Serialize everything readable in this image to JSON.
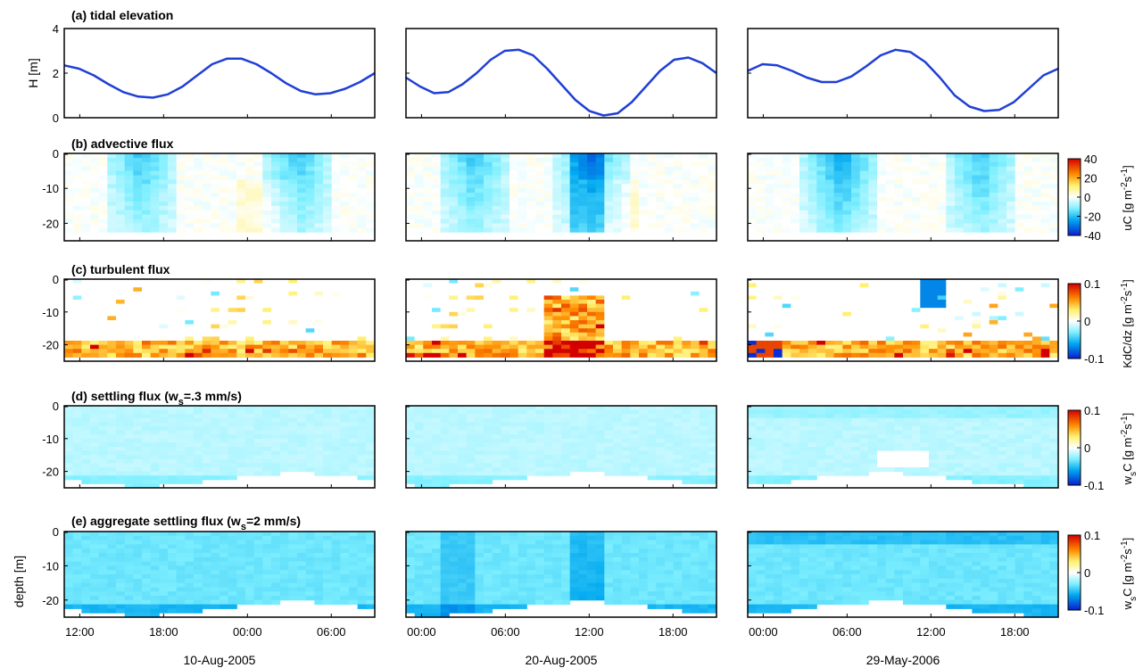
{
  "figure": {
    "panel_titles": [
      "(a) tidal elevation",
      "(b) advective flux",
      "(c) turbulent flux",
      "(d) settling flux (w",
      "(e) aggregate settling flux (w"
    ],
    "title_subscripts": [
      "s",
      "s"
    ],
    "title_suffixes": [
      "=.3 mm/s)",
      "=2 mm/s)"
    ],
    "ylabel_elevation": "H [m]",
    "ylabel_depth": "depth [m]",
    "dates": [
      "10-Aug-2005",
      "20-Aug-2005",
      "29-May-2006"
    ],
    "colorbar_labels": [
      "uC [g m",
      "KdC/dz [g m",
      "w",
      "w"
    ],
    "colorbar_label_tail": "s",
    "colorbar_superscripts": [
      "-2",
      "-1"
    ],
    "colorbar_sub_labels": [
      "C [g m",
      "C [g m"
    ]
  },
  "chart_data": {
    "type": "heatmap",
    "x_ticks": [
      [
        "12:00",
        "18:00",
        "00:00",
        "06:00"
      ],
      [
        "00:00",
        "06:00",
        "12:00",
        "18:00"
      ],
      [
        "00:00",
        "06:00",
        "12:00",
        "18:00"
      ]
    ],
    "elevation": {
      "type": "line",
      "ylim": [
        0,
        4
      ],
      "yticks": [
        "4",
        "2",
        "0"
      ],
      "color": "#1f3fd6",
      "series": [
        [
          2.35,
          2.2,
          1.9,
          1.5,
          1.15,
          0.95,
          0.9,
          1.05,
          1.4,
          1.9,
          2.4,
          2.65,
          2.65,
          2.4,
          2.0,
          1.55,
          1.2,
          1.05,
          1.1,
          1.3,
          1.6,
          2.0
        ],
        [
          1.8,
          1.4,
          1.1,
          1.15,
          1.5,
          2.0,
          2.6,
          3.0,
          3.05,
          2.8,
          2.2,
          1.5,
          0.8,
          0.3,
          0.1,
          0.2,
          0.7,
          1.4,
          2.1,
          2.6,
          2.7,
          2.45,
          2.0
        ],
        [
          2.1,
          2.4,
          2.35,
          2.1,
          1.8,
          1.6,
          1.6,
          1.85,
          2.3,
          2.8,
          3.05,
          2.95,
          2.5,
          1.8,
          1.0,
          0.5,
          0.3,
          0.35,
          0.7,
          1.3,
          1.9,
          2.2
        ]
      ]
    },
    "depth_axis": {
      "ylim": [
        -25,
        0
      ],
      "yticks": [
        "0",
        "-10",
        "-20"
      ]
    },
    "colorbars": [
      {
        "ticks": [
          "40",
          "20",
          "0",
          "-20",
          "-40"
        ],
        "range": [
          -40,
          40
        ]
      },
      {
        "ticks": [
          "0.1",
          "0",
          "-0.1"
        ],
        "range": [
          -0.1,
          0.1
        ]
      },
      {
        "ticks": [
          "0.1",
          "0",
          "-0.1"
        ],
        "range": [
          -0.1,
          0.1
        ]
      },
      {
        "ticks": [
          "0.1",
          "0",
          "-0.1"
        ],
        "range": [
          -0.1,
          0.1
        ]
      }
    ],
    "colormap": "jet-like (blue → cyan → white → yellow → red)"
  }
}
